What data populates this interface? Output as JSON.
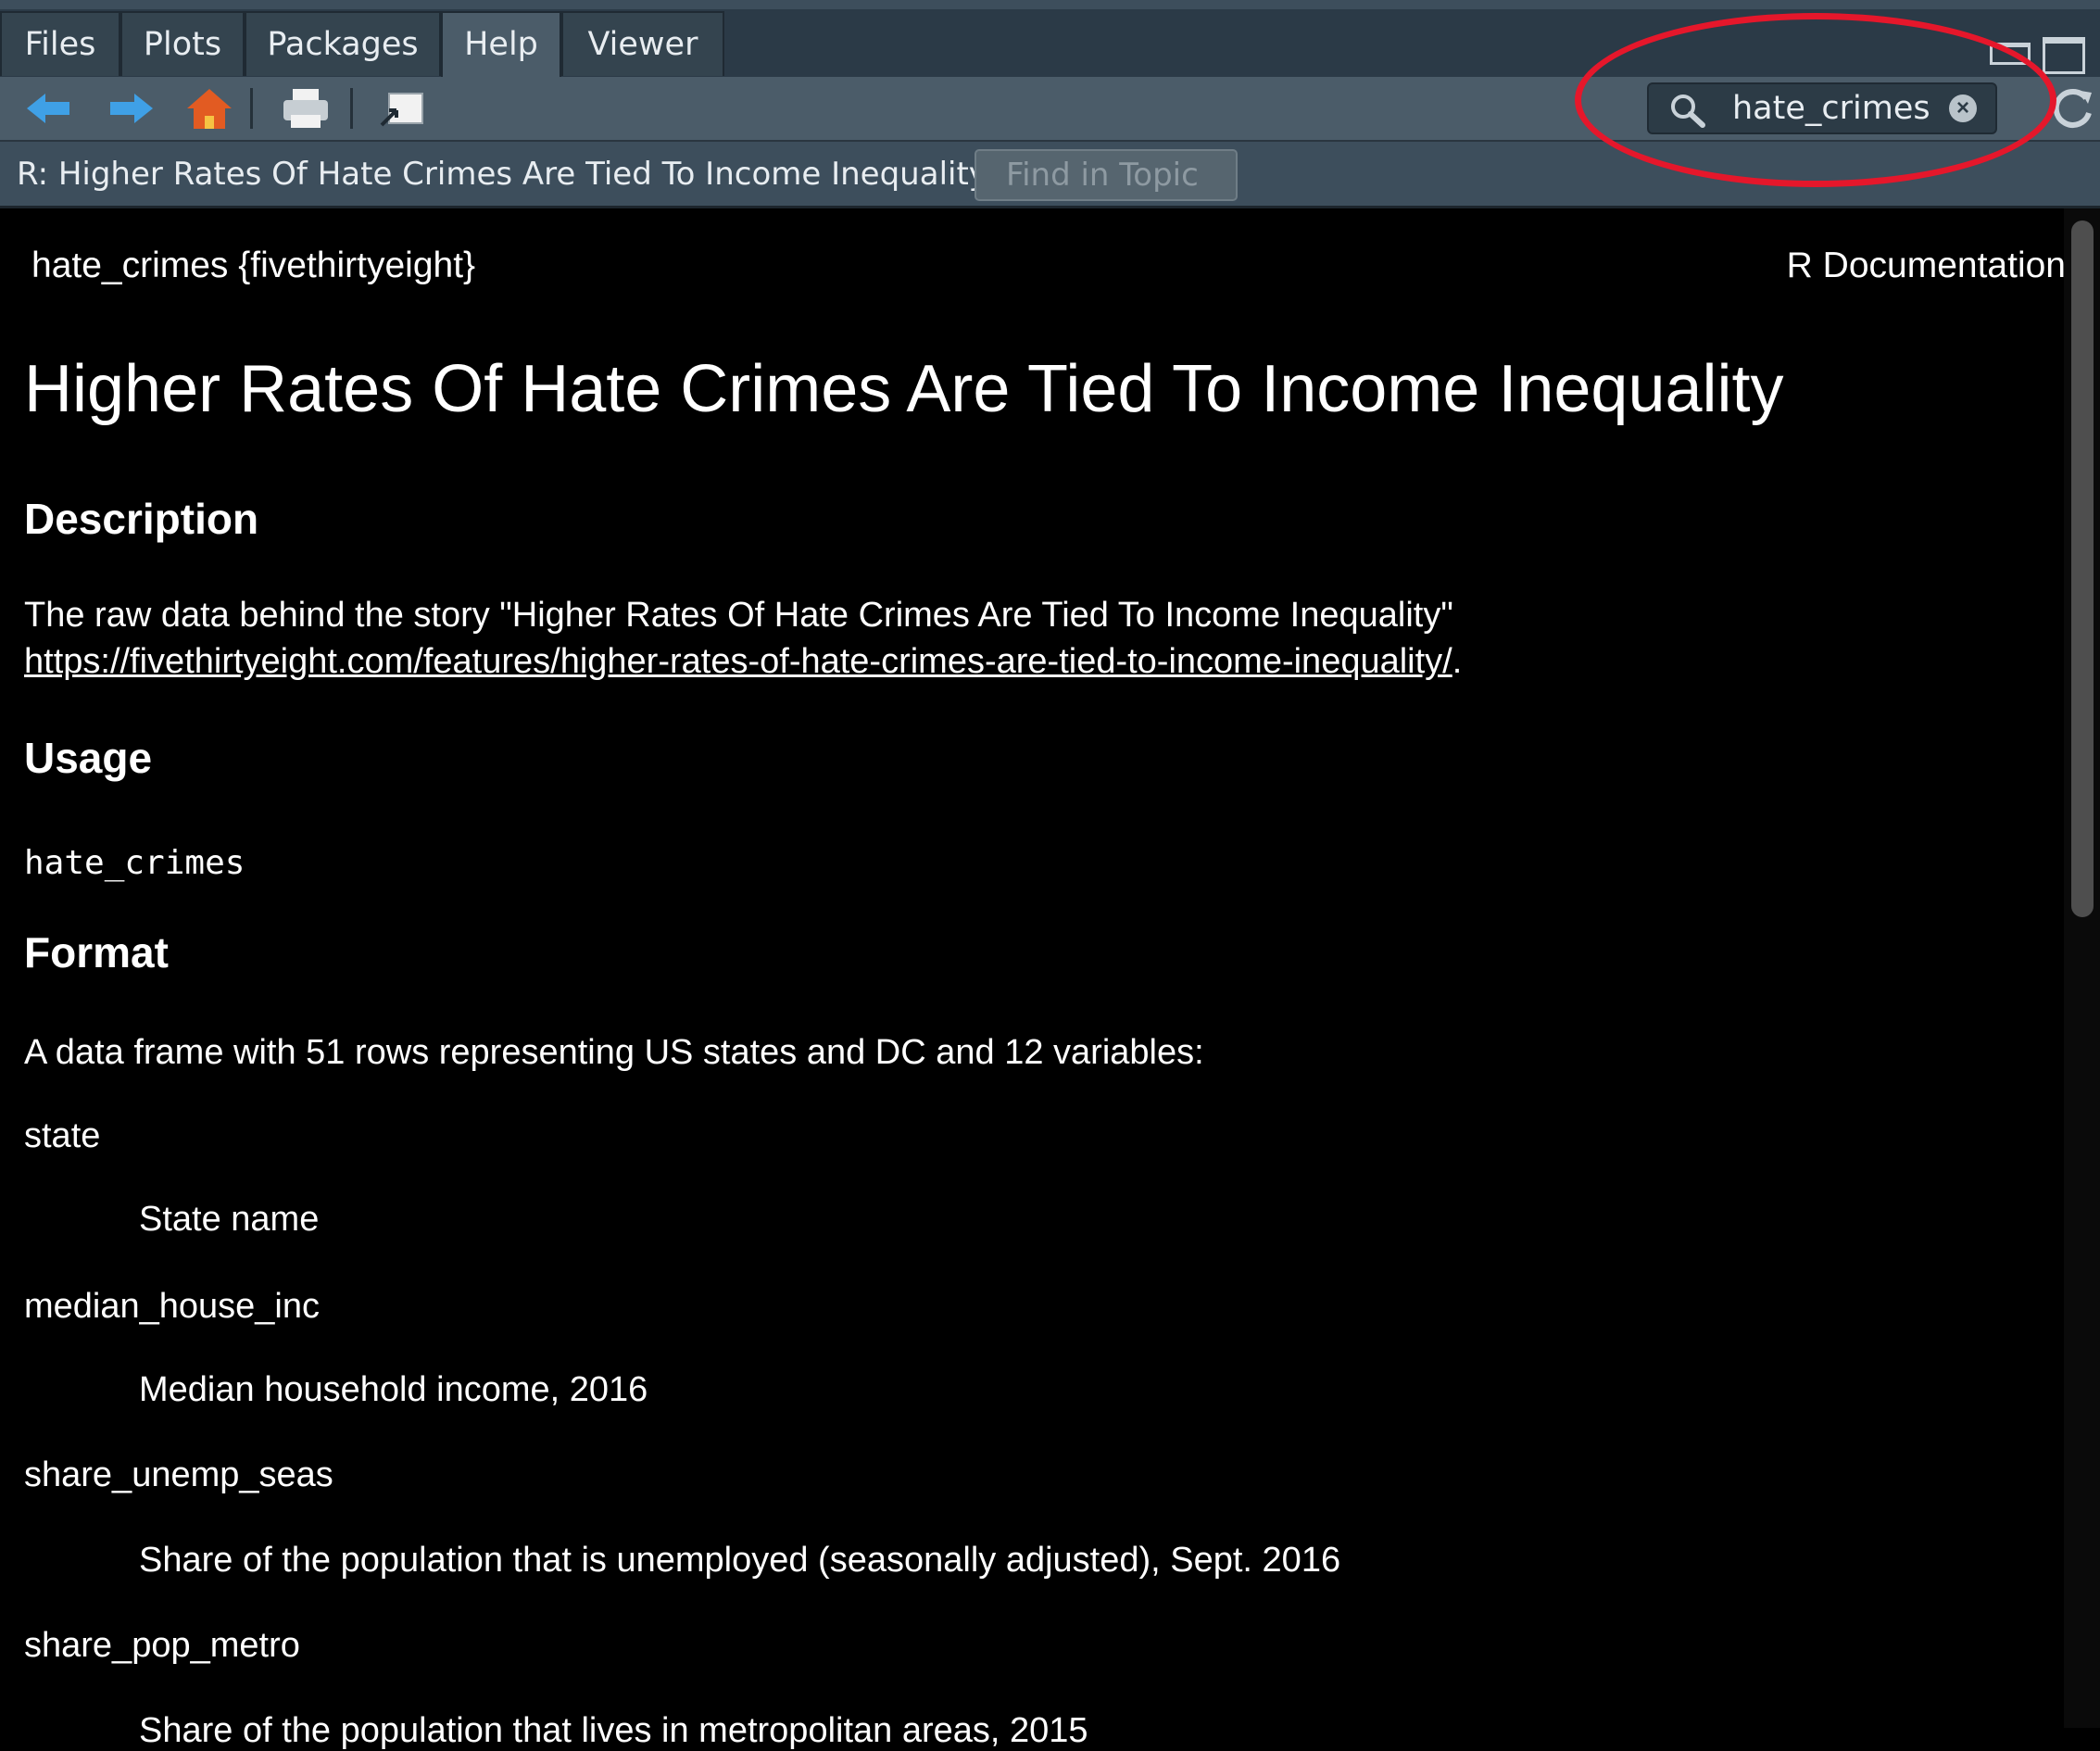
{
  "tabs": [
    {
      "label": "Files",
      "active": false
    },
    {
      "label": "Plots",
      "active": false
    },
    {
      "label": "Packages",
      "active": false
    },
    {
      "label": "Help",
      "active": true
    },
    {
      "label": "Viewer",
      "active": false
    }
  ],
  "toolbar": {
    "back_icon": "arrow-left-icon",
    "forward_icon": "arrow-right-icon",
    "home_icon": "home-icon",
    "print_icon": "printer-icon",
    "open_window_icon": "external-window-icon",
    "refresh_icon": "refresh-icon"
  },
  "search": {
    "value": "hate_crimes",
    "icon": "search-icon"
  },
  "topic_bar": {
    "selected_topic": "R: Higher Rates Of Hate Crimes Are Tied To Income Inequality",
    "find_placeholder": "Find in Topic"
  },
  "doc": {
    "name_package": "hate_crimes {fivethirtyeight}",
    "doc_type": "R Documentation",
    "title": "Higher Rates Of Hate Crimes Are Tied To Income Inequality",
    "sections": {
      "description_heading": "Description",
      "description_text": "The raw data behind the story \"Higher Rates Of Hate Crimes Are Tied To Income Inequality\"",
      "description_link": "https://fivethirtyeight.com/features/higher-rates-of-hate-crimes-are-tied-to-income-inequality/",
      "description_link_suffix": ".",
      "usage_heading": "Usage",
      "usage_code": "hate_crimes",
      "format_heading": "Format",
      "format_text": "A data frame with 51 rows representing US states and DC and 12 variables:"
    },
    "variables": [
      {
        "name": "state",
        "desc": "State name"
      },
      {
        "name": "median_house_inc",
        "desc": "Median household income, 2016"
      },
      {
        "name": "share_unemp_seas",
        "desc": "Share of the population that is unemployed (seasonally adjusted), Sept. 2016"
      },
      {
        "name": "share_pop_metro",
        "desc": "Share of the population that lives in metropolitan areas, 2015"
      }
    ]
  },
  "colors": {
    "annotation_circle": "#e5172b",
    "panel_background": "#000000",
    "toolbar_background": "#4b5c69"
  }
}
